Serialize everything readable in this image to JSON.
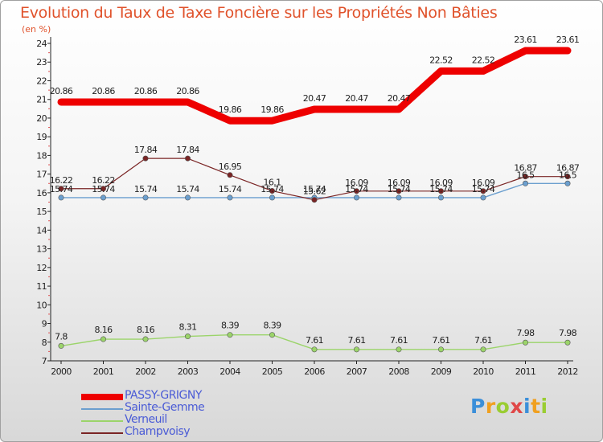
{
  "title": "Evolution du Taux de Taxe Foncière sur les Propriétés Non Bâties",
  "unit_label": "(en %)",
  "logo_text": "Proxiti",
  "chart_data": {
    "type": "line",
    "x": [
      "2000",
      "2001",
      "2002",
      "2003",
      "2004",
      "2005",
      "2006",
      "2007",
      "2008",
      "2009",
      "2010",
      "2011",
      "2012"
    ],
    "ylim": [
      7,
      24
    ],
    "yticks": [
      7,
      8,
      9,
      10,
      11,
      12,
      13,
      14,
      15,
      16,
      17,
      18,
      19,
      20,
      21,
      22,
      23,
      24
    ],
    "grid": false,
    "legend_position": "bottom-left",
    "series": [
      {
        "name": "PASSY-GRIGNY",
        "color": "#ee0000",
        "values": [
          20.86,
          20.86,
          20.86,
          20.86,
          19.86,
          19.86,
          20.47,
          20.47,
          20.47,
          22.52,
          22.52,
          23.61,
          23.61
        ],
        "labels": [
          "20.86",
          "20.86",
          "20.86",
          "20.86",
          "19.86",
          "19.86",
          "20.47",
          "20.47",
          "20.47",
          "22.52",
          "22.52",
          "23.61",
          "23.61"
        ]
      },
      {
        "name": "Sainte-Gemme",
        "color": "#6b9fcf",
        "values": [
          15.74,
          15.74,
          15.74,
          15.74,
          15.74,
          15.74,
          15.74,
          15.74,
          15.74,
          15.74,
          15.74,
          16.5,
          16.5
        ],
        "labels": [
          "15.74",
          "15.74",
          "15.74",
          "15.74",
          "15.74",
          "15.74",
          "15.74",
          "15.74",
          "15.74",
          "15.74",
          "15.74",
          "16.5",
          "16.5"
        ]
      },
      {
        "name": "Verneuil",
        "color": "#9bd46a",
        "values": [
          7.8,
          8.16,
          8.16,
          8.31,
          8.39,
          8.39,
          7.61,
          7.61,
          7.61,
          7.61,
          7.61,
          7.98,
          7.98
        ],
        "labels": [
          "7.8",
          "8.16",
          "8.16",
          "8.31",
          "8.39",
          "8.39",
          "7.61",
          "7.61",
          "7.61",
          "7.61",
          "7.61",
          "7.98",
          "7.98"
        ]
      },
      {
        "name": "Champvoisy",
        "color": "#7a2424",
        "values": [
          16.22,
          16.22,
          17.84,
          17.84,
          16.95,
          16.1,
          15.62,
          16.09,
          16.09,
          16.09,
          16.09,
          16.87,
          16.87
        ],
        "labels": [
          "16.22",
          "16.22",
          "17.84",
          "17.84",
          "16.95",
          "16.1",
          "15.62",
          "16.09",
          "16.09",
          "16.09",
          "16.09",
          "16.87",
          "16.87"
        ]
      }
    ]
  }
}
